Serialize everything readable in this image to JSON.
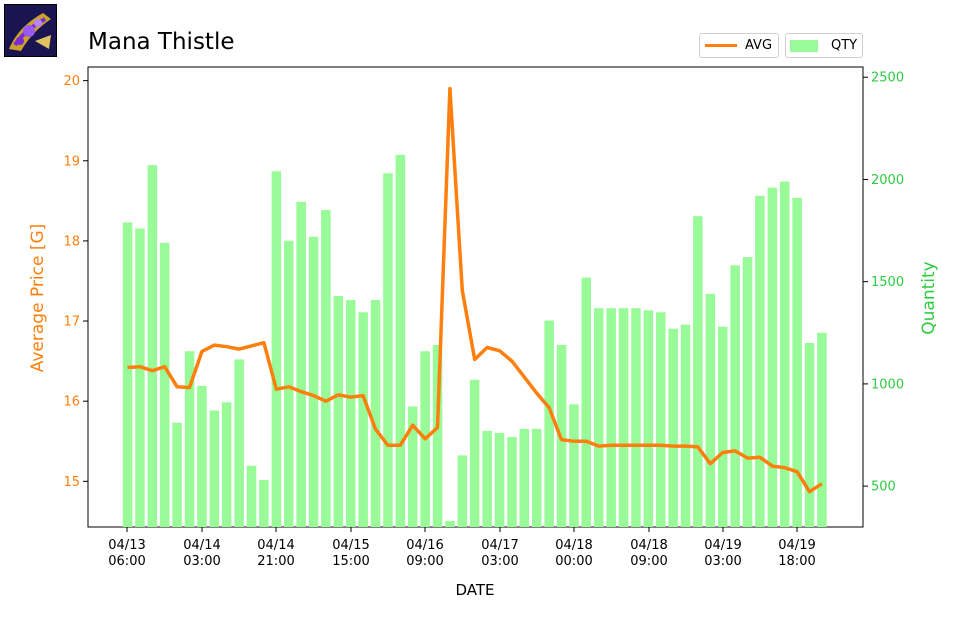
{
  "item": {
    "name": "Mana Thistle",
    "icon": "mana-thistle-item-icon"
  },
  "legend": {
    "avg_label": "AVG",
    "qty_label": "QTY"
  },
  "colors": {
    "avg": "#ff7f0e",
    "qty": "#98fb98",
    "ylabel_left": "#ff7f0e",
    "ylabel_right": "#2ecc40"
  },
  "chart_data": {
    "type": "bar",
    "title": "Mana Thistle",
    "xlabel": "DATE",
    "ylabel_left": "Average Price [G]",
    "ylabel_right": "Quantity",
    "x_tick_labels": [
      "04/13\n06:00",
      "04/14\n03:00",
      "04/14\n21:00",
      "04/15\n15:00",
      "04/16\n09:00",
      "04/17\n03:00",
      "04/18\n00:00",
      "04/18\n09:00",
      "04/19\n03:00",
      "04/19\n18:00"
    ],
    "y_left_ticks": [
      15,
      16,
      17,
      18,
      19,
      20
    ],
    "y_left_range": [
      14.43,
      20.17
    ],
    "y_right_ticks": [
      500,
      1000,
      1500,
      2000,
      2500
    ],
    "y_right_range": [
      300,
      2550
    ],
    "grid": false,
    "legend_position": "top-right, outside",
    "series": [
      {
        "name": "QTY",
        "type": "bar",
        "axis": "right",
        "values": [
          1790,
          1760,
          2070,
          1690,
          810,
          1160,
          990,
          870,
          910,
          1120,
          600,
          530,
          2040,
          1700,
          1890,
          1720,
          1850,
          1430,
          1410,
          1350,
          1410,
          2030,
          2120,
          890,
          1160,
          1190,
          330,
          650,
          1020,
          770,
          760,
          740,
          780,
          780,
          1310,
          1190,
          900,
          1520,
          1370,
          1370,
          1370,
          1370,
          1360,
          1350,
          1270,
          1290,
          1820,
          1440,
          1280,
          1580,
          1620,
          1920,
          1960,
          1990,
          1910,
          1200,
          1250
        ]
      },
      {
        "name": "AVG",
        "type": "line",
        "axis": "left",
        "values": [
          16.42,
          16.43,
          16.38,
          16.43,
          16.18,
          16.17,
          16.62,
          16.7,
          16.68,
          16.65,
          16.69,
          16.73,
          16.15,
          16.18,
          16.12,
          16.07,
          16.0,
          16.08,
          16.05,
          16.07,
          15.65,
          15.45,
          15.45,
          15.7,
          15.53,
          15.67,
          19.9,
          17.38,
          16.52,
          16.67,
          16.63,
          16.5,
          16.3,
          16.1,
          15.92,
          15.52,
          15.5,
          15.5,
          15.44,
          15.45,
          15.45,
          15.45,
          15.45,
          15.45,
          15.44,
          15.44,
          15.43,
          15.22,
          15.36,
          15.38,
          15.29,
          15.3,
          15.19,
          15.17,
          15.12,
          14.87,
          14.97
        ]
      }
    ]
  }
}
